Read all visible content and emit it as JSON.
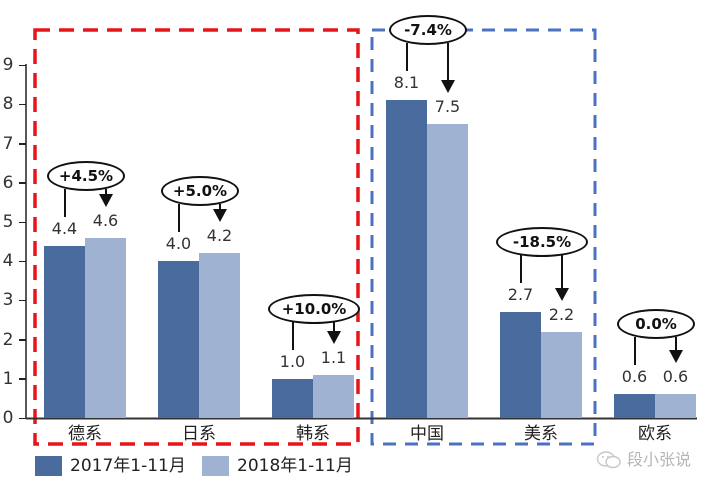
{
  "chart_data": {
    "type": "bar",
    "title": "",
    "xlabel": "",
    "ylabel": "",
    "ylim": [
      0,
      9
    ],
    "yticks": [
      0,
      1,
      2,
      3,
      4,
      5,
      6,
      7,
      8,
      9
    ],
    "grid": false,
    "legend_position": "bottom-left",
    "categories": [
      "德系",
      "日系",
      "韩系",
      "中国",
      "美系",
      "欧系"
    ],
    "series": [
      {
        "name": "2017年1-11月",
        "color": "#4a6b9e",
        "values": [
          4.4,
          4.0,
          1.0,
          8.1,
          2.7,
          0.6
        ]
      },
      {
        "name": "2018年1-11月",
        "color": "#9fb2d1",
        "values": [
          4.6,
          4.2,
          1.1,
          7.5,
          2.2,
          0.6
        ]
      }
    ],
    "value_labels": {
      "s2017": [
        "4.4",
        "4.0",
        "1.0",
        "8.1",
        "2.7",
        "0.6"
      ],
      "s2018": [
        "4.6",
        "4.2",
        "1.1",
        "7.5",
        "2.2",
        "0.6"
      ]
    },
    "annotations": {
      "growth": [
        "+4.5%",
        "+5.0%",
        "+10.0%",
        "-7.4%",
        "-18.5%",
        "0.0%"
      ]
    },
    "groups": [
      {
        "color": "#e8141b",
        "style": "dashed",
        "members": [
          "德系",
          "日系",
          "韩系"
        ]
      },
      {
        "color": "#4a72c0",
        "style": "dashed",
        "members": [
          "中国",
          "美系"
        ]
      }
    ]
  },
  "legend": {
    "items": [
      {
        "label": "2017年1-11月",
        "color": "#4a6b9e"
      },
      {
        "label": "2018年1-11月",
        "color": "#9fb2d1"
      }
    ]
  },
  "watermark": {
    "text": "段小张说",
    "icon": "wechat-icon"
  },
  "colors": {
    "dark_bar": "#4a6b9e",
    "light_bar": "#9fb2d1",
    "red_group_border": "#e8141b",
    "blue_group_border": "#4a72c0"
  }
}
